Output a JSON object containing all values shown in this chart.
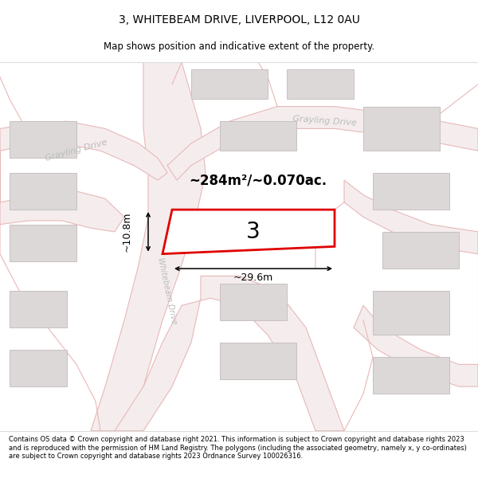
{
  "title": "3, WHITEBEAM DRIVE, LIVERPOOL, L12 0AU",
  "subtitle": "Map shows position and indicative extent of the property.",
  "footer": "Contains OS data © Crown copyright and database right 2021. This information is subject to Crown copyright and database rights 2023 and is reproduced with the permission of HM Land Registry. The polygons (including the associated geometry, namely x, y co-ordinates) are subject to Crown copyright and database rights 2023 Ordnance Survey 100026316.",
  "map_bg": "#faf6f6",
  "road_edge": "#e8b8b8",
  "road_fill": "#f5eded",
  "bld_edge": "#c8c0c0",
  "bld_fill": "#ddd8d8",
  "highlight": "#e00000",
  "area_text": "~284m²/~0.070ac.",
  "width_label": "~29.6m",
  "height_label": "~10.8m",
  "plot_number": "3",
  "road_label_left": "Grayling Drive",
  "road_label_right": "Grayling Drive",
  "road_label_vert": "Whitebeam Drive",
  "title_fontsize": 10,
  "subtitle_fontsize": 8.5
}
